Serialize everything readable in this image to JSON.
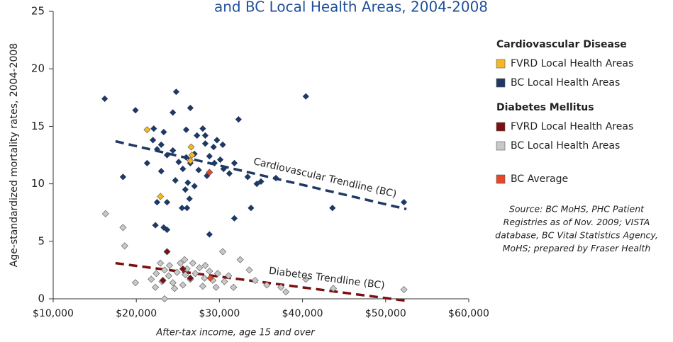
{
  "chart_data": {
    "type": "scatter",
    "title": "and BC Local Health Areas, 2004-2008",
    "y_label": "Age-standardized mortality rates, 2004-2008",
    "x_label": "After-tax income, age 15 and over",
    "xlim": [
      10000,
      60000
    ],
    "xticks": [
      {
        "value": 10000,
        "label": "$10,000"
      },
      {
        "value": 20000,
        "label": "$20,000"
      },
      {
        "value": 30000,
        "label": "$30,000"
      },
      {
        "value": 40000,
        "label": "$40,000"
      },
      {
        "value": 50000,
        "label": "$50,000"
      },
      {
        "value": 60000,
        "label": "$60,000"
      }
    ],
    "ylim": [
      0,
      25
    ],
    "yticks": [
      0,
      5,
      10,
      15,
      20,
      25
    ],
    "grid": false,
    "groups": [
      {
        "title": "Cardiovascular Disease",
        "series": [
          {
            "name": "FVRD Local Health Areas",
            "color": "#f5b820",
            "x": [
              21300,
              26600,
              26700,
              26500,
              22900
            ],
            "values": [
              14.7,
              13.2,
              12.5,
              12.0,
              8.9
            ]
          },
          {
            "name": "BC Local Health Areas",
            "color": "#1f3864",
            "x": [
              16200,
              19900,
              18400,
              24800,
              24400,
              26500,
              22100,
              23300,
              26000,
              28000,
              32300,
              40400,
              21300,
              22000,
              22500,
              23000,
              23700,
              24400,
              25100,
              25600,
              26000,
              26500,
              27000,
              27500,
              28300,
              28800,
              29400,
              30100,
              30500,
              31200,
              31800,
              23000,
              24700,
              26200,
              27000,
              25900,
              26400,
              22500,
              23700,
              25500,
              26100,
              22300,
              23300,
              23700,
              28800,
              31800,
              33800,
              33400,
              34500,
              35000,
              36800,
              43600,
              52200,
              27300,
              28300,
              29700,
              29300,
              30400,
              28500
            ],
            "values": [
              17.4,
              16.4,
              10.6,
              18.0,
              16.2,
              16.6,
              14.8,
              14.5,
              14.7,
              14.8,
              15.6,
              17.6,
              11.8,
              13.8,
              13.0,
              13.4,
              12.5,
              12.9,
              11.9,
              11.3,
              12.3,
              11.8,
              12.6,
              11.2,
              13.5,
              12.4,
              11.8,
              12.1,
              11.3,
              10.9,
              11.8,
              11.1,
              10.3,
              10.1,
              9.8,
              9.5,
              8.7,
              8.4,
              8.4,
              7.9,
              7.9,
              6.4,
              6.2,
              6.0,
              5.6,
              7.0,
              7.9,
              10.6,
              10.0,
              10.2,
              10.5,
              7.9,
              8.4,
              14.2,
              14.2,
              13.8,
              13.2,
              13.4,
              10.7
            ]
          }
        ]
      },
      {
        "title": "Diabetes Mellitus",
        "series": [
          {
            "name": "FVRD Local Health Areas",
            "color": "#7b1010",
            "x": [
              23700,
              25600,
              26500,
              23200
            ],
            "values": [
              4.1,
              2.6,
              1.8,
              1.6
            ]
          },
          {
            "name": "BC Local Health Areas",
            "color": "#c8c8c8",
            "x": [
              16300,
              18400,
              18600,
              30400,
              32500,
              33600,
              40400,
              35700,
              38000,
              52200,
              19900,
              23400,
              21800,
              22400,
              22900,
              23400,
              23900,
              24400,
              24900,
              25300,
              25800,
              26100,
              26500,
              26800,
              27100,
              27600,
              28200,
              28800,
              29200,
              29800,
              30600,
              31100,
              22300,
              23100,
              24600,
              25600,
              28000,
              31700,
              34300,
              37400,
              43700,
              24000,
              25900,
              28300,
              29600
            ],
            "values": [
              7.4,
              6.2,
              4.6,
              4.1,
              3.4,
              2.5,
              1.7,
              1.2,
              0.6,
              0.8,
              1.4,
              0.0,
              1.7,
              2.2,
              3.1,
              2.5,
              2.0,
              1.4,
              2.3,
              3.1,
              3.4,
              2.6,
              1.7,
              3.1,
              2.2,
              2.7,
              1.8,
              2.4,
              1.6,
              2.2,
              1.5,
              2.0,
              1.0,
              1.5,
              0.9,
              1.2,
              1.1,
              1.0,
              1.6,
              1.0,
              0.9,
              2.9,
              2.1,
              2.9,
              1.0
            ]
          }
        ]
      },
      {
        "series": [
          {
            "name": "BC Average",
            "color": "#e8472a",
            "x": [
              28800,
              28900
            ],
            "values": [
              11.0,
              1.8
            ]
          }
        ]
      }
    ],
    "trendlines": [
      {
        "label": "Cardiovascular Trendline (BC)",
        "color": "#1f3864",
        "x": [
          17500,
          52500
        ],
        "values": [
          13.7,
          7.8
        ]
      },
      {
        "label": "Diabetes Trendline (BC)",
        "color": "#7b1010",
        "x": [
          17500,
          52800
        ],
        "values": [
          3.1,
          -0.2
        ]
      }
    ],
    "source": [
      "Source: BC MoHS, PHC Patient",
      "Registries as of Nov. 2009; VISTA",
      "database, BC Vital Statistics Agency,",
      "MoHS; prepared by Fraser Health"
    ]
  }
}
